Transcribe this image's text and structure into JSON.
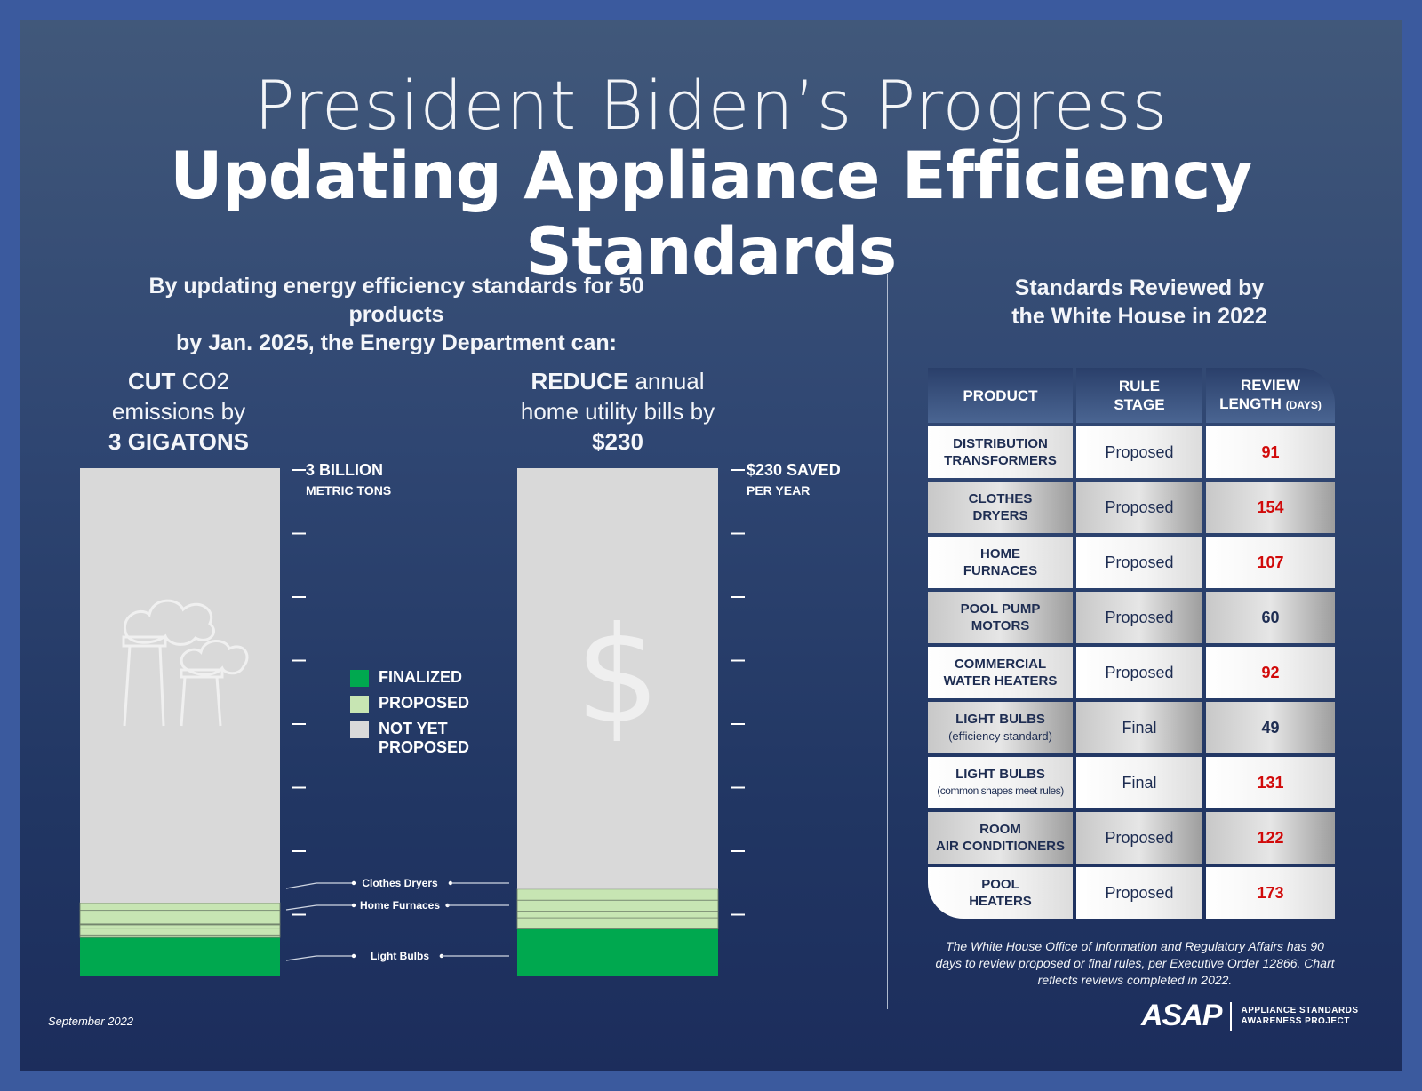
{
  "title": {
    "line1": "President Biden’s Progress",
    "line2": "Updating Appliance Efficiency Standards"
  },
  "intro": {
    "line1": "By updating energy efficiency standards for 50 products",
    "line2": "by Jan. 2025, the Energy Department can:"
  },
  "metrics": {
    "co2": {
      "verb": "CUT",
      "rest": " CO2",
      "line2": "emissions by",
      "line3": "3 GIGATONS"
    },
    "bills": {
      "verb": "REDUCE",
      "rest": " annual",
      "line2": "home utility bills by",
      "line3": "$230"
    }
  },
  "legend": [
    {
      "label": "FINALIZED",
      "color": "#00a84f"
    },
    {
      "label": "PROPOSED",
      "color": "#c7e5b3"
    },
    {
      "label": "NOT YET PROPOSED",
      "color": "#d9d9d9"
    }
  ],
  "chart_data": [
    {
      "type": "bar",
      "name": "CO2 emissions cut",
      "max": 3,
      "ticks": 8,
      "top_label": {
        "line1": "3 BILLION",
        "line2": "METRIC TONS"
      },
      "icon": "factory-smoke-icon",
      "segments": [
        {
          "status": "finalized",
          "value": 0.23
        },
        {
          "status": "proposed",
          "value": 0.015
        },
        {
          "status": "proposed",
          "value": 0.04
        },
        {
          "status": "proposed",
          "value": 0.02
        },
        {
          "status": "proposed",
          "value": 0.005
        },
        {
          "status": "proposed",
          "value": 0.08
        },
        {
          "status": "proposed",
          "value": 0.045
        },
        {
          "status": "not_proposed",
          "value": 2.565
        }
      ]
    },
    {
      "type": "bar",
      "name": "Annual bill reduction",
      "max": 230,
      "ticks": 8,
      "top_label": {
        "line1": "$230 SAVED",
        "line2": "PER YEAR"
      },
      "icon": "dollar-icon",
      "segments": [
        {
          "status": "finalized",
          "value": 21.5
        },
        {
          "status": "proposed",
          "value": 5
        },
        {
          "status": "proposed",
          "value": 3
        },
        {
          "status": "proposed",
          "value": 5
        },
        {
          "status": "proposed",
          "value": 5
        },
        {
          "status": "not_proposed",
          "value": 190.5
        }
      ]
    }
  ],
  "callouts": [
    "Clothes Dryers",
    "Home Furnaces",
    "Light Bulbs"
  ],
  "review": {
    "heading_line1": "Standards Reviewed by",
    "heading_line2": "the White House in 2022",
    "headers": {
      "product": "PRODUCT",
      "stage1": "RULE",
      "stage2": "STAGE",
      "len1": "REVIEW",
      "len2": "LENGTH",
      "len_unit": "(DAYS)"
    },
    "rows": [
      {
        "l1": "DISTRIBUTION",
        "l2": "TRANSFORMERS",
        "sub": "",
        "stage": "Proposed",
        "days": "91",
        "over": true
      },
      {
        "l1": "CLOTHES",
        "l2": "DRYERS",
        "sub": "",
        "stage": "Proposed",
        "days": "154",
        "over": true
      },
      {
        "l1": "HOME",
        "l2": "FURNACES",
        "sub": "",
        "stage": "Proposed",
        "days": "107",
        "over": true
      },
      {
        "l1": "POOL PUMP",
        "l2": "MOTORS",
        "sub": "",
        "stage": "Proposed",
        "days": "60",
        "over": false
      },
      {
        "l1": "COMMERCIAL",
        "l2": "WATER HEATERS",
        "sub": "",
        "stage": "Proposed",
        "days": "92",
        "over": true
      },
      {
        "l1": "LIGHT BULBS",
        "l2": "",
        "sub": "(efficiency standard)",
        "stage": "Final",
        "days": "49",
        "over": false
      },
      {
        "l1": "LIGHT BULBS",
        "l2": "",
        "sub": "(common shapes meet rules)",
        "stage": "Final",
        "days": "131",
        "over": true
      },
      {
        "l1": "ROOM",
        "l2": "AIR CONDITIONERS",
        "sub": "",
        "stage": "Proposed",
        "days": "122",
        "over": true
      },
      {
        "l1": "POOL",
        "l2": "HEATERS",
        "sub": "",
        "stage": "Proposed",
        "days": "173",
        "over": true
      }
    ],
    "note": "The White House Office of Information and Regulatory Affairs has 90 days to review proposed or final rules, per Executive Order 12866. Chart reflects reviews completed in 2022.",
    "over_color": "#d10a0a",
    "normal_color": "#1e2d52"
  },
  "footer": {
    "date": "September 2022",
    "logo": "ASAP",
    "logo_line1": "APPLIANCE STANDARDS",
    "logo_line2": "AWARENESS PROJECT"
  }
}
